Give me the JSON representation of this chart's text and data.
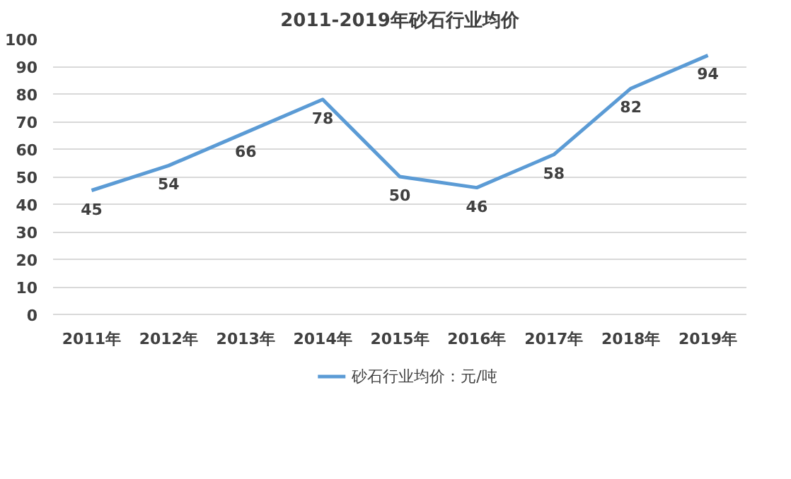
{
  "chart_data": {
    "type": "line",
    "title": "2011-2019年砂石行业均价",
    "categories": [
      "2011年",
      "2012年",
      "2013年",
      "2014年",
      "2015年",
      "2016年",
      "2017年",
      "2018年",
      "2019年"
    ],
    "series": [
      {
        "name": "砂石行业均价：元/吨",
        "color": "#5b9bd5",
        "values": [
          45,
          54,
          66,
          78,
          50,
          46,
          58,
          82,
          94
        ]
      }
    ],
    "ylim": [
      0,
      100
    ],
    "yticks": [
      0,
      10,
      20,
      30,
      40,
      50,
      60,
      70,
      80,
      90,
      100
    ],
    "grid": "y",
    "legend": "bottom",
    "data_labels": true
  }
}
